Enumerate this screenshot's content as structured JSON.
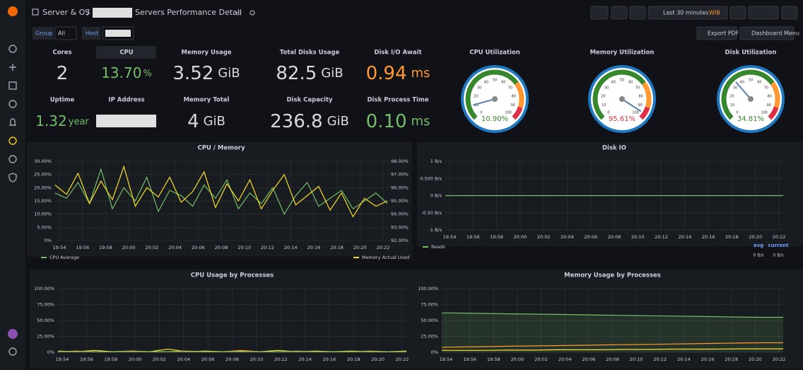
{
  "header": {
    "folder": "Server & OS",
    "separator": "/",
    "title": "Servers Performance Detail",
    "time_range": "Last 30 minutes",
    "timezone": "WIB",
    "buttons": [
      "Export PDF",
      "Dashboard Menu"
    ]
  },
  "variables": [
    {
      "label": "Group",
      "value": "All"
    },
    {
      "label": "Host"
    }
  ],
  "stats": [
    {
      "title": "Cores",
      "value": "2",
      "color": "#d8d9da"
    },
    {
      "title": "CPU",
      "value": "13.70",
      "unit": "%",
      "color": "#73bf69"
    },
    {
      "title": "Memory Usage",
      "value": "3.52",
      "unit": "GiB",
      "color": "#d8d9da"
    },
    {
      "title": "Total Disks Usage",
      "value": "82.5",
      "unit": "GiB",
      "color": "#d8d9da"
    },
    {
      "title": "Disk I/O Await",
      "value": "0.94",
      "unit": "ms",
      "color": "#ff9830"
    },
    {
      "title": "Uptime",
      "value": "1.32",
      "unit": "year",
      "color": "#73bf69"
    },
    {
      "title": "IP Address"
    },
    {
      "title": "Memory Total",
      "value": "4",
      "unit": "GiB",
      "color": "#d8d9da"
    },
    {
      "title": "Disk Capacity",
      "value": "236.8",
      "unit": "GiB",
      "color": "#d8d9da"
    },
    {
      "title": "Disk Process Time",
      "value": "0.10",
      "unit": "ms",
      "color": "#73bf69"
    }
  ],
  "gauges": [
    {
      "title": "CPU Utilization",
      "value": 10.9,
      "label": "10.90%",
      "color": "#37872d"
    },
    {
      "title": "Memory Utilization",
      "value": 95.61,
      "label": "95.61%",
      "color": "#e02f44"
    },
    {
      "title": "Disk Utilization",
      "value": 34.81,
      "label": "34.81%",
      "color": "#37872d"
    }
  ],
  "gauge_ticks": [
    0,
    10,
    20,
    30,
    40,
    50,
    60,
    70,
    80,
    90,
    100
  ],
  "gauge_range": [
    0,
    100
  ],
  "panels": {
    "cpu_memory": {
      "title": "CPU / Memory",
      "ylim": [
        0,
        30
      ],
      "yticks": [
        {
          "value": 0,
          "label": "0%"
        },
        {
          "value": 5,
          "label": "5.00%"
        },
        {
          "value": 10,
          "label": "10.00%"
        },
        {
          "value": 15,
          "label": "15.00%"
        },
        {
          "value": 20,
          "label": "20.00%"
        },
        {
          "value": 25,
          "label": "25.00%"
        },
        {
          "value": 30,
          "label": "30.00%"
        }
      ],
      "y2lim": [
        92,
        98
      ],
      "y2ticks": [
        {
          "value": 92,
          "label": "92.00%"
        },
        {
          "value": 93,
          "label": "93.00%"
        },
        {
          "value": 94,
          "label": "94.00%"
        },
        {
          "value": 95,
          "label": "95.00%"
        },
        {
          "value": 96,
          "label": "96.00%"
        },
        {
          "value": 97,
          "label": "97.00%"
        },
        {
          "value": 98,
          "label": "98.00%"
        }
      ],
      "xticks": [
        "19:54",
        "19:56",
        "19:58",
        "20:00",
        "20:02",
        "20:04",
        "20:06",
        "20:08",
        "20:10",
        "20:12",
        "20:14",
        "20:16",
        "20:18",
        "20:20",
        "20:22"
      ],
      "series": [
        {
          "name": "CPU Average",
          "color": "#73bf69",
          "values": [
            18,
            16,
            22,
            14,
            27,
            12,
            20,
            15,
            24,
            11,
            19,
            17,
            13,
            21,
            16,
            23,
            12,
            18,
            14,
            20,
            10,
            17,
            22,
            13,
            16,
            19,
            12,
            15,
            18,
            14
          ]
        },
        {
          "name": "Memory Actual Used",
          "color": "#fade2a",
          "axis": "y2",
          "values": [
            96.2,
            95.5,
            97.1,
            94.8,
            96.5,
            95.1,
            97.6,
            94.6,
            96.0,
            95.3,
            96.8,
            94.9,
            95.7,
            97.2,
            94.5,
            96.3,
            95.0,
            96.6,
            94.4,
            95.8,
            97.0,
            94.7,
            95.4,
            96.1,
            94.3,
            95.6,
            93.8,
            95.2,
            94.6,
            95.0
          ]
        }
      ]
    },
    "disk_io": {
      "title": "Disk IO",
      "ylim": [
        -1,
        1
      ],
      "yticks": [
        {
          "value": -1,
          "label": "-1 B/s"
        },
        {
          "value": -0.5,
          "label": "-0.50 B/s"
        },
        {
          "value": 0,
          "label": "0 B/s"
        },
        {
          "value": 0.5,
          "label": "0.500 B/s"
        },
        {
          "value": 1,
          "label": "1 B/s"
        }
      ],
      "xticks": [
        "19:54",
        "19:56",
        "19:58",
        "20:00",
        "20:02",
        "20:04",
        "20:06",
        "20:08",
        "20:10",
        "20:12",
        "20:14",
        "20:16",
        "20:18",
        "20:20",
        "20:22"
      ],
      "series": [
        {
          "name": "Reads",
          "color": "#73bf69",
          "values": [
            0,
            0,
            0,
            0,
            0,
            0,
            0,
            0,
            0,
            0
          ]
        }
      ],
      "legend_headers": [
        "avg",
        "current"
      ],
      "legend_values": [
        "0 B/s",
        "0 B/s"
      ]
    },
    "cpu_processes": {
      "title": "CPU Usage by Processes",
      "ylim": [
        0,
        100
      ],
      "yticks": [
        {
          "value": 0,
          "label": "0%"
        },
        {
          "value": 25,
          "label": "25.00%"
        },
        {
          "value": 50,
          "label": "50.00%"
        },
        {
          "value": 75,
          "label": "75.00%"
        },
        {
          "value": 100,
          "label": "100.00%"
        }
      ],
      "xticks": [
        "19:54",
        "19:56",
        "19:58",
        "20:00",
        "20:02",
        "20:04",
        "20:06",
        "20:08",
        "20:10",
        "20:12",
        "20:14",
        "20:16",
        "20:18",
        "20:20",
        "20:22"
      ],
      "series": [
        {
          "color": "#fade2a",
          "values": [
            2,
            1,
            3,
            1,
            2,
            1,
            5,
            1,
            2,
            1,
            2,
            1,
            3,
            1,
            2,
            1,
            2,
            1,
            1,
            2
          ]
        },
        {
          "color": "#ff9830",
          "values": [
            1,
            2,
            1,
            1,
            2,
            1,
            1,
            2,
            1,
            1,
            3,
            1,
            1,
            2,
            1,
            1,
            1,
            2,
            1,
            1
          ]
        },
        {
          "color": "#73bf69",
          "values": [
            1,
            1,
            1,
            1,
            1,
            1,
            1,
            1,
            1,
            1,
            1,
            1,
            1,
            1,
            1,
            1,
            1,
            1,
            1,
            1
          ]
        }
      ]
    },
    "memory_processes": {
      "title": "Memory Usage by Processes",
      "ylim": [
        0,
        100
      ],
      "yticks": [
        {
          "value": 0,
          "label": "0%"
        },
        {
          "value": 25,
          "label": "25.00%"
        },
        {
          "value": 50,
          "label": "50.00%"
        },
        {
          "value": 75,
          "label": "75.00%"
        },
        {
          "value": 100,
          "label": "100.00%"
        }
      ],
      "xticks": [
        "19:54",
        "19:56",
        "19:58",
        "20:00",
        "20:02",
        "20:04",
        "20:06",
        "20:08",
        "20:10",
        "20:12",
        "20:14",
        "20:16",
        "20:18",
        "20:20",
        "20:22"
      ],
      "series": [
        {
          "color": "#73bf69",
          "fill": true,
          "values": [
            62,
            61.5,
            61,
            60.5,
            60,
            59.5,
            59,
            58.5,
            58,
            57.5,
            57,
            56.5,
            56,
            55.5,
            55,
            55
          ]
        },
        {
          "color": "#ff9830",
          "values": [
            8,
            8.5,
            9,
            9.5,
            10,
            10.5,
            11,
            11.5,
            12,
            12.5,
            13,
            13.5,
            14,
            14.5,
            15,
            15
          ]
        },
        {
          "color": "#fade2a",
          "values": [
            3,
            3,
            3,
            3.5,
            3.5,
            4,
            4,
            4,
            4.5,
            4.5,
            5,
            5,
            5,
            5.5,
            5.5,
            5.5
          ]
        }
      ]
    }
  }
}
